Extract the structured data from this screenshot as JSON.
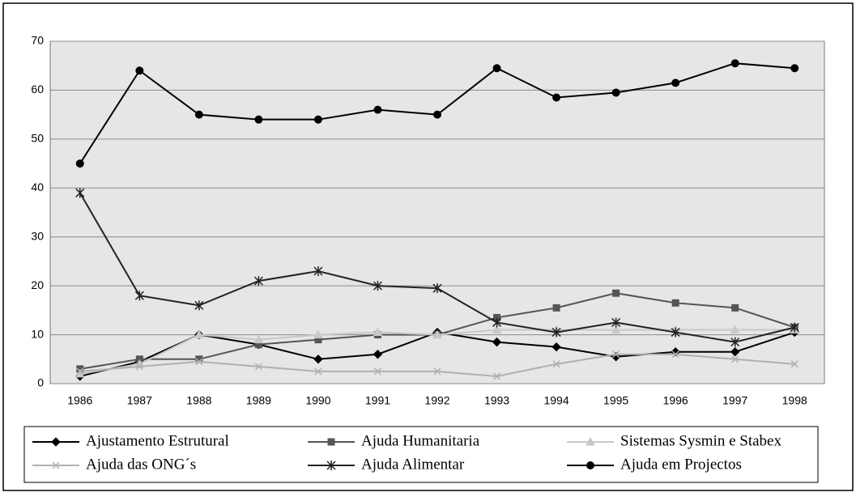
{
  "chart_data": {
    "type": "line",
    "categories": [
      "1986",
      "1987",
      "1988",
      "1989",
      "1990",
      "1991",
      "1992",
      "1993",
      "1994",
      "1995",
      "1996",
      "1997",
      "1998"
    ],
    "series": [
      {
        "name": "Ajustamento Estrutural",
        "color": "#000000",
        "marker": "diamond",
        "values": [
          1.5,
          4.5,
          10,
          8,
          5,
          6,
          10.5,
          8.5,
          7.5,
          5.5,
          6.5,
          6.5,
          10.5
        ]
      },
      {
        "name": "Ajuda Humanitaria",
        "color": "#555555",
        "marker": "square",
        "values": [
          3,
          5,
          5,
          8,
          9,
          10,
          10,
          13.5,
          15.5,
          18.5,
          16.5,
          15.5,
          11.5
        ]
      },
      {
        "name": "Sistemas Sysmin e Stabex",
        "color": "#c8c8c8",
        "marker": "triangle",
        "values": [
          2,
          4,
          10,
          9,
          10,
          10.5,
          10,
          11,
          11,
          11,
          11,
          11,
          11
        ]
      },
      {
        "name": "Ajuda das ONG´s",
        "color": "#b0b0b0",
        "marker": "x",
        "values": [
          2.5,
          3.5,
          4.5,
          3.5,
          2.5,
          2.5,
          2.5,
          1.5,
          4,
          6,
          6,
          5,
          4
        ]
      },
      {
        "name": "Ajuda Alimentar",
        "color": "#222222",
        "marker": "star",
        "values": [
          39,
          18,
          16,
          21,
          23,
          20,
          19.5,
          12.5,
          10.5,
          12.5,
          10.5,
          8.5,
          11.5
        ]
      },
      {
        "name": "Ajuda em Projectos",
        "color": "#000000",
        "marker": "circle",
        "values": [
          45,
          64,
          55,
          54,
          54,
          56,
          55,
          64.5,
          58.5,
          59.5,
          61.5,
          65.5,
          64.5
        ]
      }
    ],
    "ylim": [
      0,
      70
    ],
    "yticks": [
      0,
      10,
      20,
      30,
      40,
      50,
      60,
      70
    ],
    "grid": true
  }
}
